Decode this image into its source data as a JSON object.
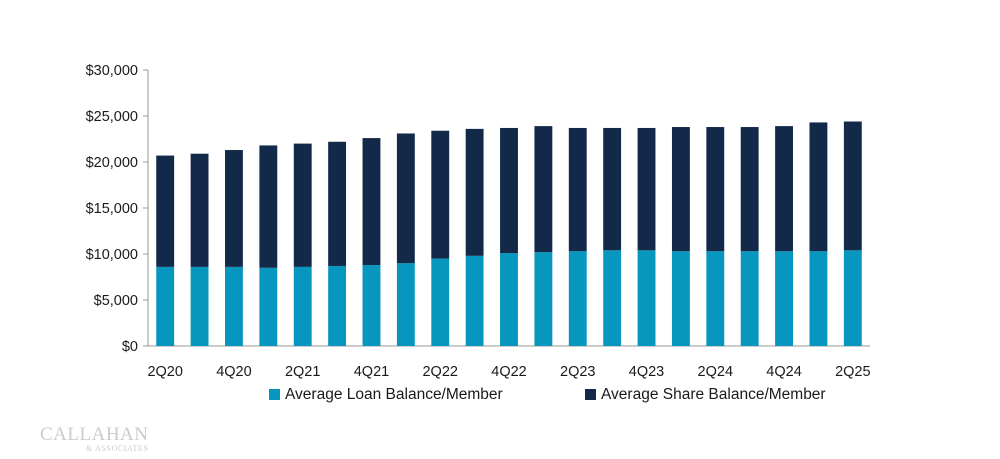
{
  "chart_data": {
    "type": "bar",
    "stacked": true,
    "title": "",
    "xlabel": "",
    "ylabel": "",
    "ylim": [
      0,
      30000
    ],
    "y_ticks": [
      "$0",
      "$5,000",
      "$10,000",
      "$15,000",
      "$20,000",
      "$25,000",
      "$30,000"
    ],
    "y_tick_values": [
      0,
      5000,
      10000,
      15000,
      20000,
      25000,
      30000
    ],
    "categories": [
      "2Q20",
      "3Q20",
      "4Q20",
      "1Q21",
      "2Q21",
      "3Q21",
      "4Q21",
      "1Q22",
      "2Q22",
      "3Q22",
      "4Q22",
      "1Q23",
      "2Q23",
      "3Q23",
      "4Q23",
      "1Q24",
      "2Q24",
      "3Q24",
      "4Q24",
      "1Q25",
      "2Q25"
    ],
    "x_tick_labels": [
      "2Q20",
      "",
      "4Q20",
      "",
      "2Q21",
      "",
      "4Q21",
      "",
      "2Q22",
      "",
      "4Q22",
      "",
      "2Q23",
      "",
      "4Q23",
      "",
      "2Q24",
      "",
      "4Q24",
      "",
      "2Q25"
    ],
    "series": [
      {
        "name": "Average Loan Balance/Member",
        "color": "#0796be",
        "values": [
          8600,
          8600,
          8600,
          8500,
          8600,
          8700,
          8800,
          9000,
          9500,
          9800,
          10100,
          10200,
          10300,
          10400,
          10400,
          10300,
          10300,
          10300,
          10300,
          10300,
          10400
        ]
      },
      {
        "name": "Average Share Balance/Member",
        "color": "#12294a",
        "values": [
          12100,
          12300,
          12700,
          13300,
          13400,
          13500,
          13800,
          14100,
          13900,
          13800,
          13600,
          13700,
          13400,
          13300,
          13300,
          13500,
          13500,
          13500,
          13600,
          14000,
          14000
        ]
      }
    ],
    "legend_position": "bottom",
    "grid": false
  },
  "logo": {
    "name": "CALLAHAN",
    "sub": "& ASSOCIATES"
  }
}
